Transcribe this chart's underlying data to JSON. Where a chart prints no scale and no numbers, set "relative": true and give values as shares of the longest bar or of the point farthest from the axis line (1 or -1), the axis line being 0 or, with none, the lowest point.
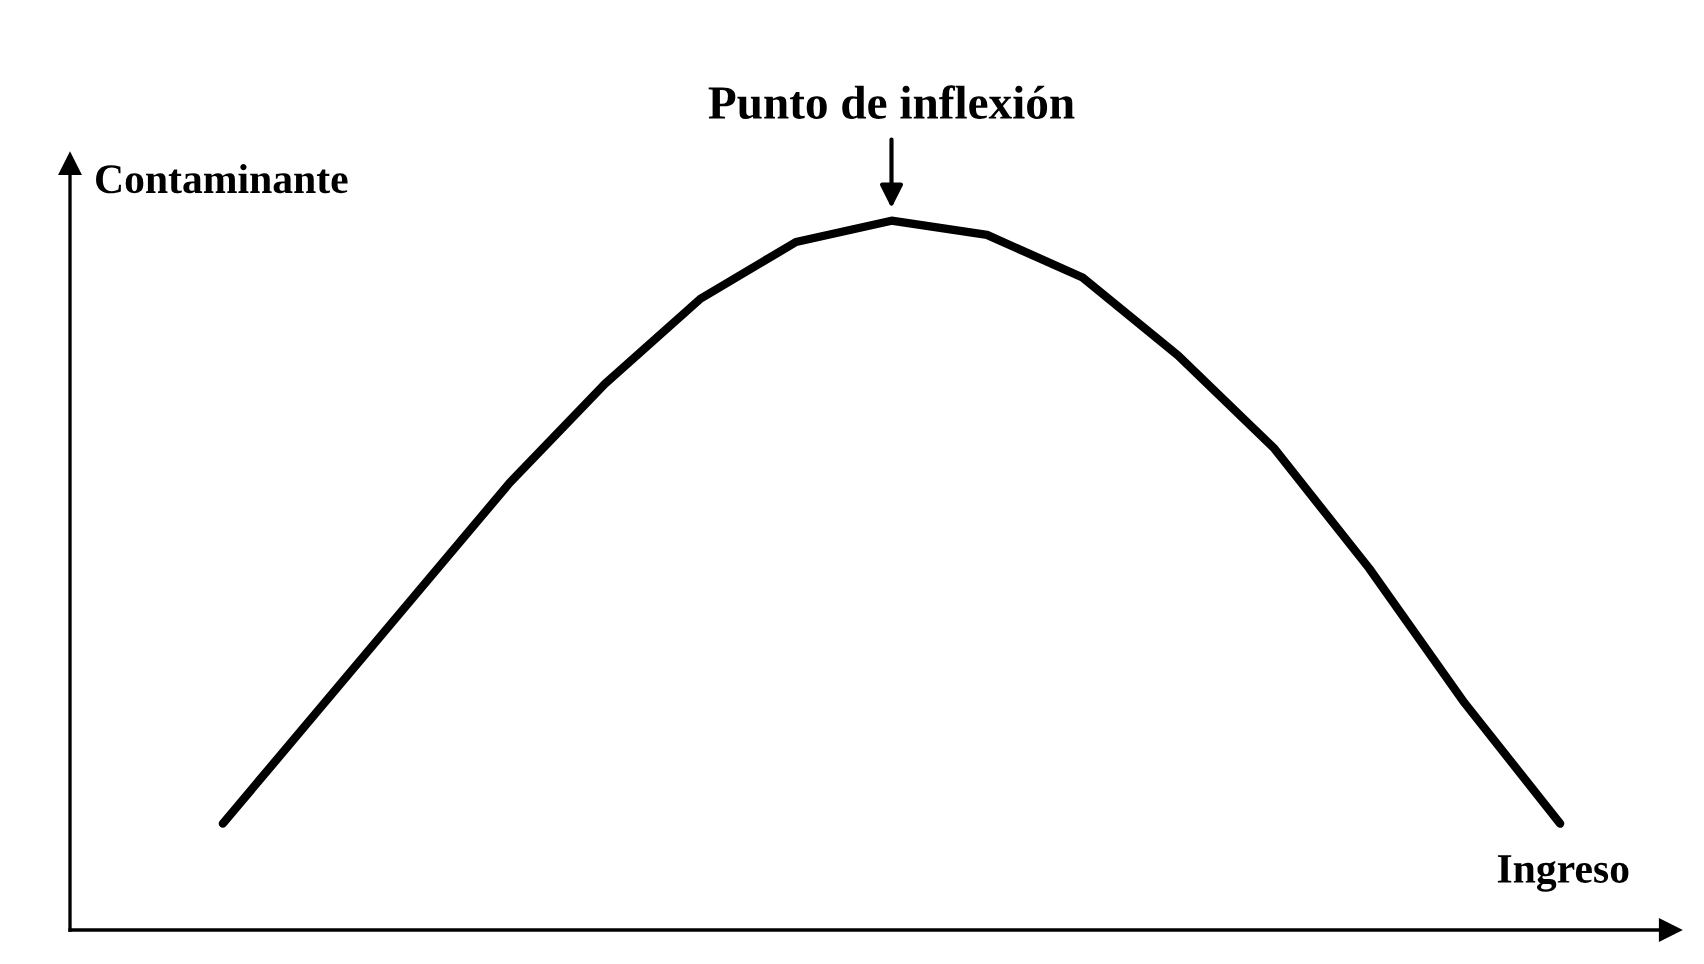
{
  "chart_data": {
    "type": "line",
    "relative": true,
    "xlabel": "Ingreso",
    "ylabel": "Contaminante",
    "annotations": [
      "Punto de inflexión"
    ],
    "categories": [
      null,
      null,
      null,
      null,
      null,
      null,
      null,
      null,
      null,
      null,
      null,
      null,
      null,
      null,
      null
    ],
    "series": [
      {
        "color": "#000000",
        "values": [
          0.15,
          0.31,
          0.47,
          0.63,
          0.77,
          0.89,
          0.97,
          1.0,
          0.98,
          0.92,
          0.81,
          0.68,
          0.51,
          0.32,
          0.15
        ]
      }
    ],
    "grid": false,
    "legend": false
  }
}
